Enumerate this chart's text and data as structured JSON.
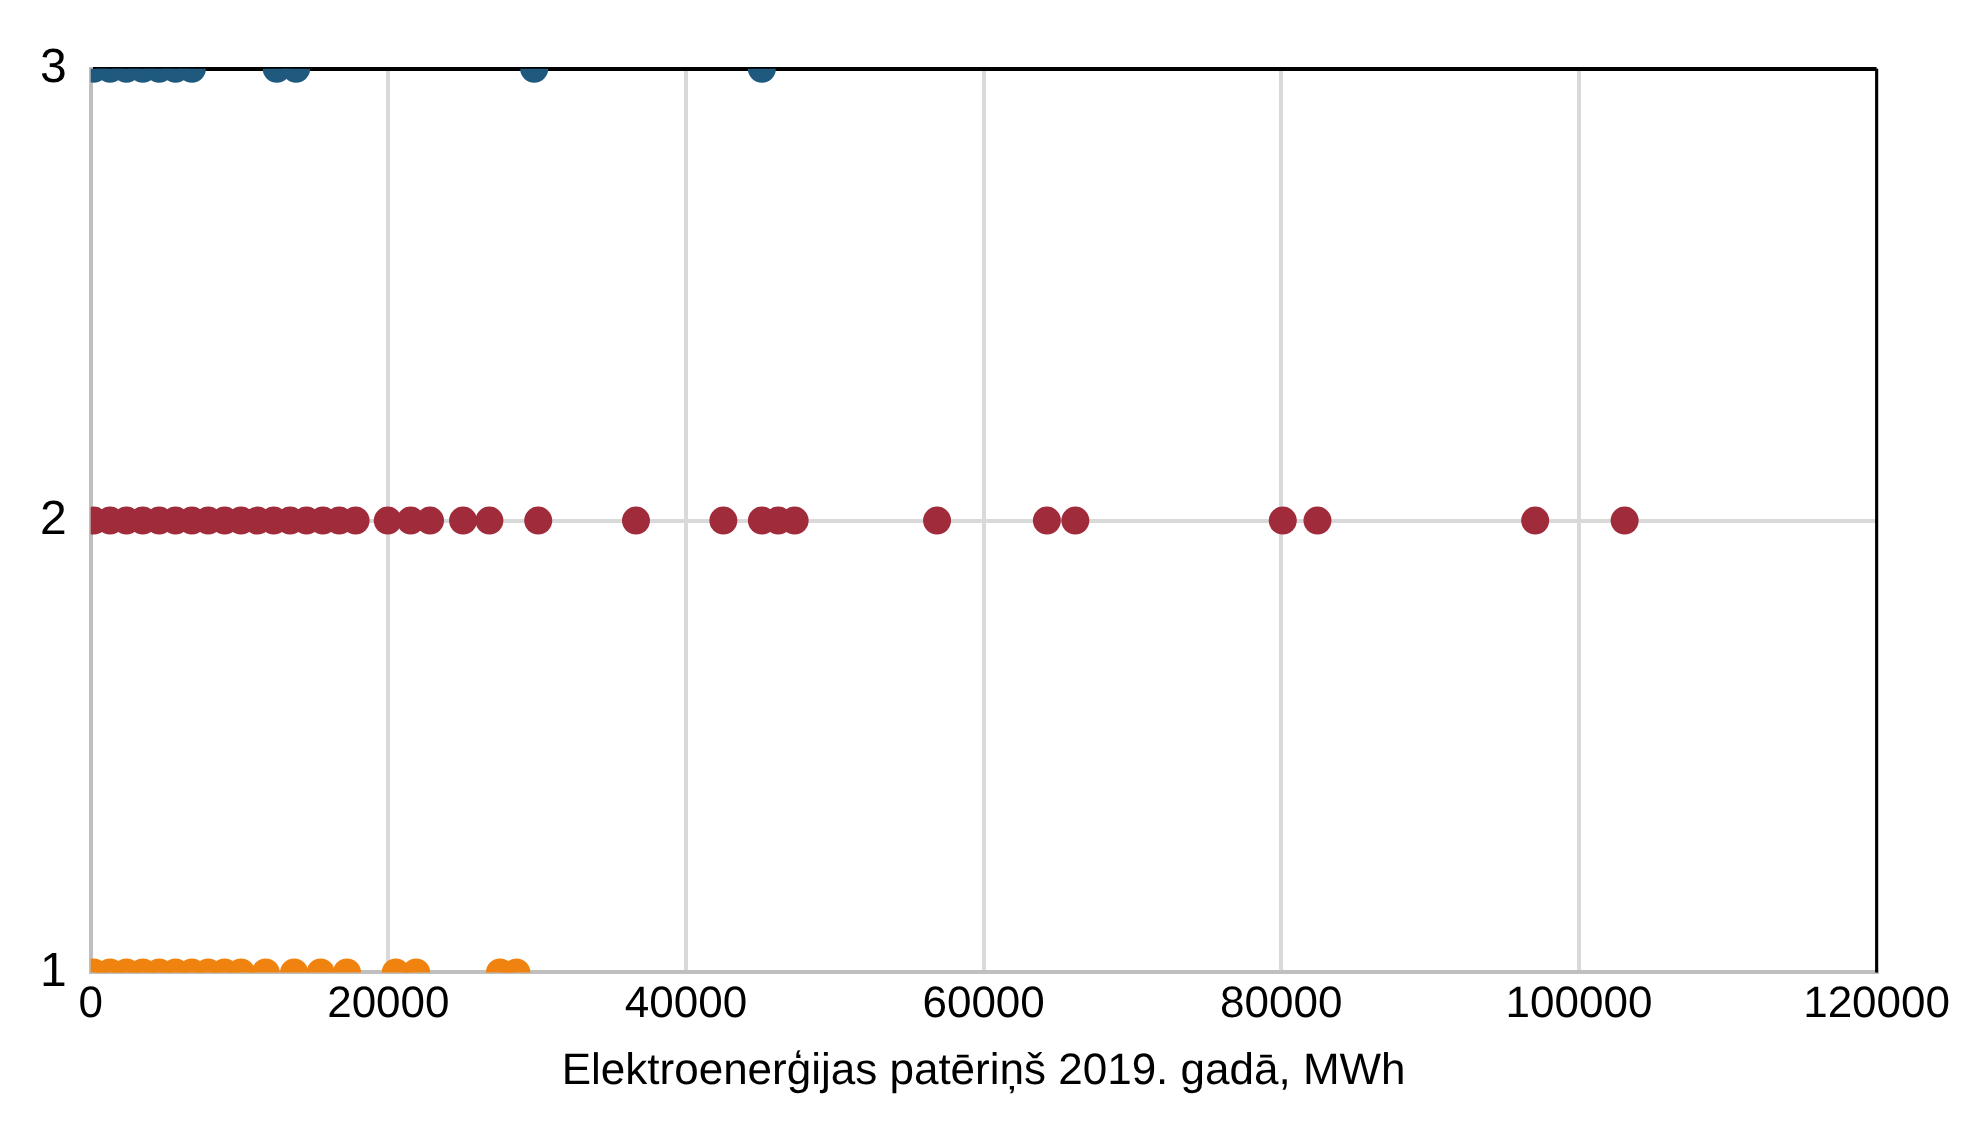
{
  "chart_data": {
    "type": "scatter",
    "xlabel": "Elektroenerģijas patēriņš 2019. gadā, MWh",
    "xlim": [
      0,
      120000
    ],
    "xticks": [
      0,
      20000,
      40000,
      60000,
      80000,
      100000,
      120000
    ],
    "ylim": [
      1,
      3
    ],
    "yticks": [
      1,
      2,
      3
    ],
    "grid": true,
    "legend": false,
    "marker": "circle",
    "series": [
      {
        "color": "#f0820f",
        "x": [
          200,
          1300,
          2400,
          3500,
          4600,
          5700,
          6800,
          7900,
          9000,
          10100,
          11760,
          13670,
          15450,
          17220,
          20500,
          21870,
          27500,
          28600
        ],
        "values": [
          1,
          1,
          1,
          1,
          1,
          1,
          1,
          1,
          1,
          1,
          1,
          1,
          1,
          1,
          1,
          1,
          1,
          1
        ]
      },
      {
        "color": "#a02b3a",
        "x": [
          200,
          1300,
          2400,
          3500,
          4600,
          5700,
          6800,
          7900,
          9000,
          10100,
          11200,
          12300,
          13400,
          14500,
          15600,
          16700,
          17800,
          19960,
          21500,
          22800,
          25020,
          26790,
          30070,
          36640,
          42510,
          45100,
          46200,
          47300,
          56870,
          64250,
          66160,
          80100,
          82430,
          97060,
          103070
        ],
        "values": [
          2,
          2,
          2,
          2,
          2,
          2,
          2,
          2,
          2,
          2,
          2,
          2,
          2,
          2,
          2,
          2,
          2,
          2,
          2,
          2,
          2,
          2,
          2,
          2,
          2,
          2,
          2,
          2,
          2,
          2,
          2,
          2,
          2,
          2,
          2
        ]
      },
      {
        "color": "#1f5a7e",
        "x": [
          200,
          1300,
          2400,
          3500,
          4600,
          5700,
          6800,
          12500,
          13800,
          29800,
          45100
        ],
        "values": [
          3,
          3,
          3,
          3,
          3,
          3,
          3,
          3,
          3,
          3,
          3
        ]
      }
    ]
  }
}
